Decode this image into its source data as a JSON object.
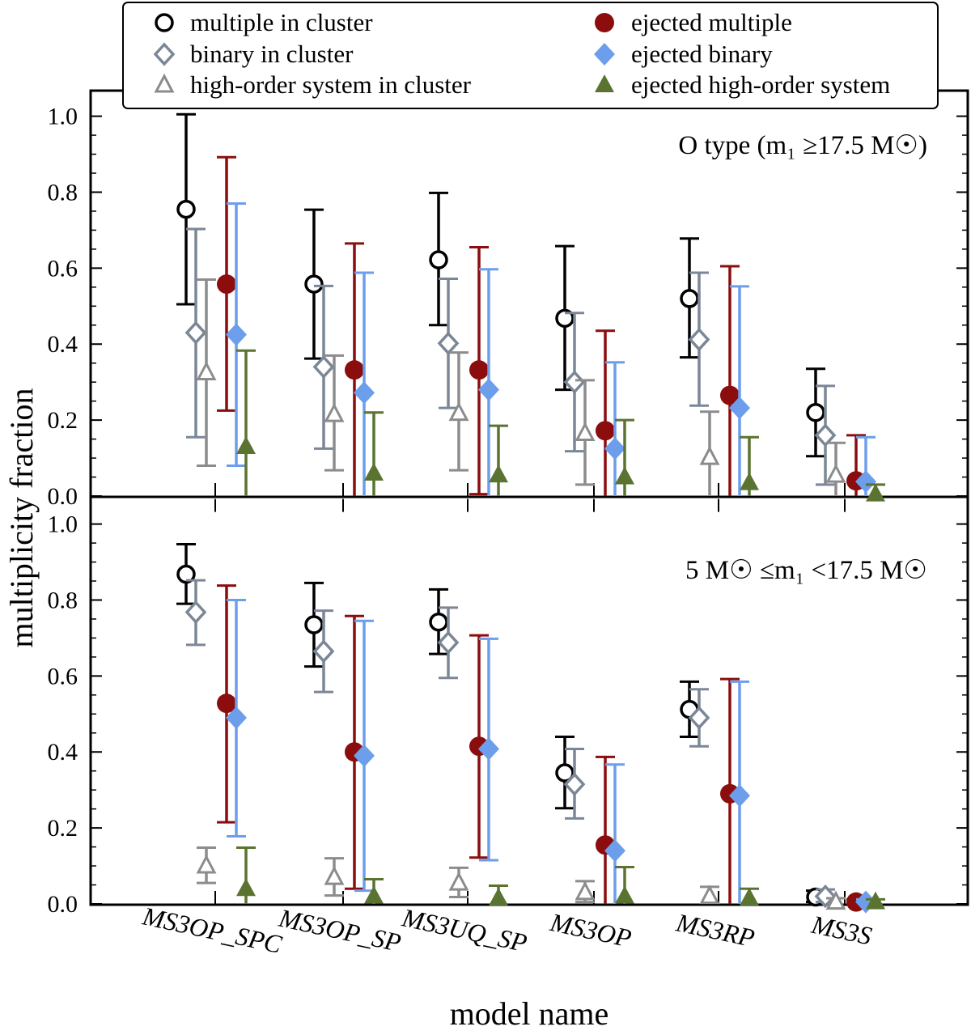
{
  "chart_data": {
    "type": "errorbar-scatter",
    "xlabel": "model name",
    "ylabel": "multiplicity fraction",
    "ylim": [
      0.0,
      1.05
    ],
    "yticks": [
      "0.0",
      "0.2",
      "0.4",
      "0.6",
      "0.8",
      "1.0"
    ],
    "categories": [
      "MS3OP_SPC",
      "MS3OP_SP",
      "MS3UQ_SP",
      "MS3OP",
      "MS3RP",
      "MS3S"
    ],
    "legend": [
      {
        "key": "mc",
        "label": "multiple in cluster",
        "color": "#000000",
        "marker": "open-circle"
      },
      {
        "key": "bc",
        "label": "binary in cluster",
        "color": "#7b8796",
        "marker": "open-diamond"
      },
      {
        "key": "hc",
        "label": "high-order system in cluster",
        "color": "#8c8c8c",
        "marker": "open-triangle"
      },
      {
        "key": "me",
        "label": "ejected multiple",
        "color": "#8b0d0d",
        "marker": "filled-circle"
      },
      {
        "key": "be",
        "label": "ejected binary",
        "color": "#6d9eeb",
        "marker": "filled-diamond"
      },
      {
        "key": "he",
        "label": "ejected high-order system",
        "color": "#5a7331",
        "marker": "filled-triangle"
      }
    ],
    "panels": [
      {
        "label_text": "O type (m₁ ≥17.5 M☉)",
        "series": [
          {
            "key": "mc",
            "values": [
              0.755,
              0.558,
              0.622,
              0.468,
              0.52,
              0.22
            ],
            "lower": [
              0.505,
              0.362,
              0.45,
              0.28,
              0.365,
              0.105
            ],
            "upper": [
              1.005,
              0.754,
              0.798,
              0.658,
              0.678,
              0.335
            ]
          },
          {
            "key": "bc",
            "values": [
              0.43,
              0.34,
              0.402,
              0.3,
              0.412,
              0.16
            ],
            "lower": [
              0.155,
              0.125,
              0.232,
              0.118,
              0.238,
              0.03
            ],
            "upper": [
              0.703,
              0.553,
              0.572,
              0.482,
              0.588,
              0.29
            ]
          },
          {
            "key": "hc",
            "values": [
              0.325,
              0.215,
              0.218,
              0.165,
              0.102,
              0.055
            ],
            "lower": [
              0.08,
              0.068,
              0.068,
              0.03,
              0.0,
              0.0
            ],
            "upper": [
              0.57,
              0.37,
              0.378,
              0.305,
              0.222,
              0.14
            ]
          },
          {
            "key": "me",
            "values": [
              0.558,
              0.332,
              0.332,
              0.172,
              0.265,
              0.04
            ],
            "lower": [
              0.225,
              0.0,
              0.005,
              0.0,
              0.0,
              0.0
            ],
            "upper": [
              0.892,
              0.665,
              0.655,
              0.435,
              0.605,
              0.16
            ]
          },
          {
            "key": "be",
            "values": [
              0.425,
              0.272,
              0.28,
              0.125,
              0.232,
              0.038
            ],
            "lower": [
              0.08,
              0.0,
              0.0,
              0.0,
              0.0,
              0.0
            ],
            "upper": [
              0.77,
              0.588,
              0.597,
              0.352,
              0.552,
              0.155
            ]
          },
          {
            "key": "he",
            "values": [
              0.13,
              0.06,
              0.055,
              0.05,
              0.035,
              0.005
            ],
            "lower": [
              0.0,
              0.0,
              0.0,
              0.0,
              0.0,
              0.0
            ],
            "upper": [
              0.383,
              0.22,
              0.185,
              0.2,
              0.155,
              0.03
            ]
          }
        ]
      },
      {
        "label_text": "5 M☉ ≤m₁ <17.5 M☉",
        "series": [
          {
            "key": "mc",
            "values": [
              0.868,
              0.735,
              0.742,
              0.345,
              0.512,
              0.018
            ],
            "lower": [
              0.79,
              0.625,
              0.658,
              0.252,
              0.44,
              0.005
            ],
            "upper": [
              0.947,
              0.845,
              0.828,
              0.44,
              0.585,
              0.035
            ]
          },
          {
            "key": "bc",
            "values": [
              0.768,
              0.665,
              0.688,
              0.315,
              0.49,
              0.02
            ],
            "lower": [
              0.682,
              0.558,
              0.595,
              0.225,
              0.415,
              0.005
            ],
            "upper": [
              0.852,
              0.772,
              0.78,
              0.408,
              0.565,
              0.038
            ]
          },
          {
            "key": "hc",
            "values": [
              0.1,
              0.07,
              0.055,
              0.03,
              0.02,
              0.005
            ],
            "lower": [
              0.055,
              0.022,
              0.018,
              0.005,
              0.0,
              0.0
            ],
            "upper": [
              0.148,
              0.12,
              0.095,
              0.06,
              0.045,
              0.015
            ]
          },
          {
            "key": "me",
            "values": [
              0.528,
              0.4,
              0.415,
              0.155,
              0.29,
              0.005
            ],
            "lower": [
              0.215,
              0.04,
              0.122,
              0.0,
              0.0,
              0.0
            ],
            "upper": [
              0.838,
              0.758,
              0.707,
              0.387,
              0.592,
              0.012
            ]
          },
          {
            "key": "be",
            "values": [
              0.49,
              0.39,
              0.408,
              0.14,
              0.285,
              0.005
            ],
            "lower": [
              0.178,
              0.035,
              0.115,
              0.0,
              0.0,
              0.0
            ],
            "upper": [
              0.8,
              0.745,
              0.698,
              0.367,
              0.585,
              0.012
            ]
          },
          {
            "key": "he",
            "values": [
              0.04,
              0.02,
              0.015,
              0.02,
              0.015,
              0.005
            ],
            "lower": [
              0.0,
              0.0,
              0.0,
              0.0,
              0.0,
              0.0
            ],
            "upper": [
              0.148,
              0.065,
              0.048,
              0.097,
              0.04,
              0.012
            ]
          }
        ]
      }
    ]
  }
}
